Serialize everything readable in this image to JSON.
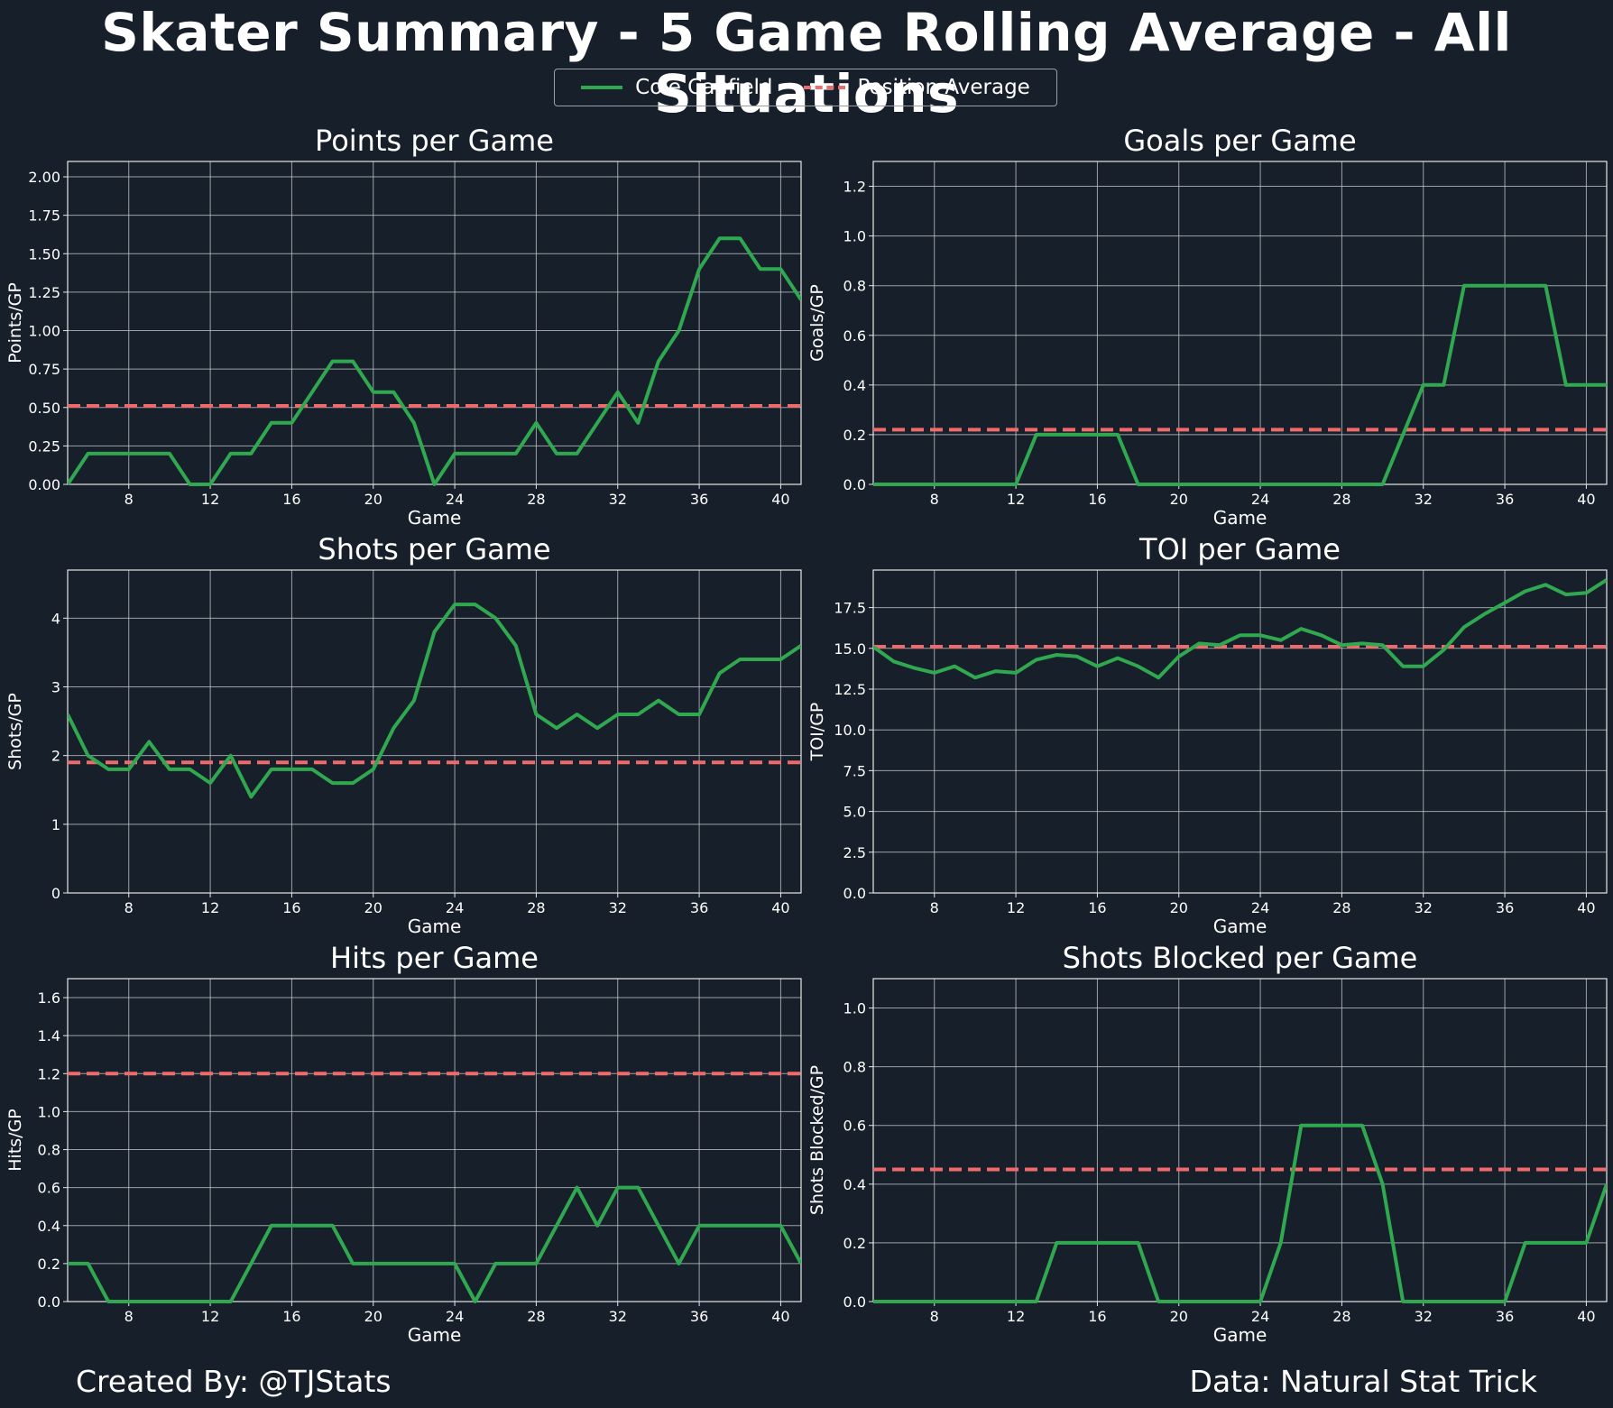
{
  "title": "Skater Summary - 5 Game Rolling Average - All Situations",
  "legend": {
    "player": "Cole Caufield",
    "average": "Position Average"
  },
  "colors": {
    "background": "#17202a",
    "player_line": "#2fa850",
    "average_line": "#ef6b6b",
    "grid": "#c8ccd0",
    "text": "#ffffff"
  },
  "footer": {
    "left": "Created By: @TJStats",
    "right": "Data: Natural Stat Trick"
  },
  "chart_data": [
    {
      "type": "line",
      "title": "Points per Game",
      "xlabel": "Game",
      "ylabel": "Points/GP",
      "xlim": [
        5,
        41
      ],
      "ylim": [
        0,
        2.1
      ],
      "xticks": [
        8,
        12,
        16,
        20,
        24,
        28,
        32,
        36,
        40
      ],
      "yticks": [
        "0.00",
        "0.25",
        "0.50",
        "0.75",
        "1.00",
        "1.25",
        "1.50",
        "1.75",
        "2.00"
      ],
      "x": [
        5,
        6,
        7,
        8,
        9,
        10,
        11,
        12,
        13,
        14,
        15,
        16,
        17,
        18,
        19,
        20,
        21,
        22,
        23,
        24,
        25,
        26,
        27,
        28,
        29,
        30,
        31,
        32,
        33,
        34,
        35,
        36,
        37,
        38,
        39,
        40,
        41
      ],
      "series": [
        {
          "name": "Cole Caufield",
          "values": [
            0,
            0.2,
            0.2,
            0.2,
            0.2,
            0.2,
            0,
            0,
            0.2,
            0.2,
            0.4,
            0.4,
            0.6,
            0.8,
            0.8,
            0.6,
            0.6,
            0.4,
            0,
            0.2,
            0.2,
            0.2,
            0.2,
            0.4,
            0.2,
            0.2,
            0.4,
            0.6,
            0.4,
            0.8,
            1.0,
            1.4,
            1.6,
            1.6,
            1.4,
            1.4,
            1.2
          ]
        }
      ],
      "average": 0.51
    },
    {
      "type": "line",
      "title": "Goals per Game",
      "xlabel": "Game",
      "ylabel": "Goals/GP",
      "xlim": [
        5,
        41
      ],
      "ylim": [
        0,
        1.3
      ],
      "xticks": [
        8,
        12,
        16,
        20,
        24,
        28,
        32,
        36,
        40
      ],
      "yticks": [
        "0.0",
        "0.2",
        "0.4",
        "0.6",
        "0.8",
        "1.0",
        "1.2"
      ],
      "x": [
        5,
        6,
        7,
        8,
        9,
        10,
        11,
        12,
        13,
        14,
        15,
        16,
        17,
        18,
        19,
        20,
        21,
        22,
        23,
        24,
        25,
        26,
        27,
        28,
        29,
        30,
        31,
        32,
        33,
        34,
        35,
        36,
        37,
        38,
        39,
        40,
        41
      ],
      "series": [
        {
          "name": "Cole Caufield",
          "values": [
            0,
            0,
            0,
            0,
            0,
            0,
            0,
            0,
            0.2,
            0.2,
            0.2,
            0.2,
            0.2,
            0,
            0,
            0,
            0,
            0,
            0,
            0,
            0,
            0,
            0,
            0,
            0,
            0,
            0.2,
            0.4,
            0.4,
            0.8,
            0.8,
            0.8,
            0.8,
            0.8,
            0.4,
            0.4,
            0.4
          ]
        }
      ],
      "average": 0.22
    },
    {
      "type": "line",
      "title": "Shots per Game",
      "xlabel": "Game",
      "ylabel": "Shots/GP",
      "xlim": [
        5,
        41
      ],
      "ylim": [
        0,
        4.7
      ],
      "xticks": [
        8,
        12,
        16,
        20,
        24,
        28,
        32,
        36,
        40
      ],
      "yticks": [
        "0",
        "1",
        "2",
        "3",
        "4"
      ],
      "x": [
        5,
        6,
        7,
        8,
        9,
        10,
        11,
        12,
        13,
        14,
        15,
        16,
        17,
        18,
        19,
        20,
        21,
        22,
        23,
        24,
        25,
        26,
        27,
        28,
        29,
        30,
        31,
        32,
        33,
        34,
        35,
        36,
        37,
        38,
        39,
        40,
        41
      ],
      "series": [
        {
          "name": "Cole Caufield",
          "values": [
            2.6,
            2.0,
            1.8,
            1.8,
            2.2,
            1.8,
            1.8,
            1.6,
            2.0,
            1.4,
            1.8,
            1.8,
            1.8,
            1.6,
            1.6,
            1.8,
            2.4,
            2.8,
            3.8,
            4.2,
            4.2,
            4.0,
            3.6,
            2.6,
            2.4,
            2.6,
            2.4,
            2.6,
            2.6,
            2.8,
            2.6,
            2.6,
            3.2,
            3.4,
            3.4,
            3.4,
            3.6
          ]
        }
      ],
      "average": 1.9
    },
    {
      "type": "line",
      "title": "TOI per Game",
      "xlabel": "Game",
      "ylabel": "TOI/GP",
      "xlim": [
        5,
        41
      ],
      "ylim": [
        0,
        19.8
      ],
      "xticks": [
        8,
        12,
        16,
        20,
        24,
        28,
        32,
        36,
        40
      ],
      "yticks": [
        "0.0",
        "2.5",
        "5.0",
        "7.5",
        "10.0",
        "12.5",
        "15.0",
        "17.5"
      ],
      "x": [
        5,
        6,
        7,
        8,
        9,
        10,
        11,
        12,
        13,
        14,
        15,
        16,
        17,
        18,
        19,
        20,
        21,
        22,
        23,
        24,
        25,
        26,
        27,
        28,
        29,
        30,
        31,
        32,
        33,
        34,
        35,
        36,
        37,
        38,
        39,
        40,
        41
      ],
      "series": [
        {
          "name": "Cole Caufield",
          "values": [
            15.1,
            14.2,
            13.8,
            13.5,
            13.9,
            13.2,
            13.6,
            13.5,
            14.3,
            14.6,
            14.5,
            13.9,
            14.4,
            13.9,
            13.2,
            14.5,
            15.3,
            15.2,
            15.8,
            15.8,
            15.5,
            16.2,
            15.8,
            15.2,
            15.3,
            15.2,
            13.9,
            13.9,
            14.9,
            16.3,
            17.1,
            17.8,
            18.5,
            18.9,
            18.3,
            18.4,
            19.2
          ]
        }
      ],
      "average": 15.1
    },
    {
      "type": "line",
      "title": "Hits per Game",
      "xlabel": "Game",
      "ylabel": "Hits/GP",
      "xlim": [
        5,
        41
      ],
      "ylim": [
        0,
        1.7
      ],
      "xticks": [
        8,
        12,
        16,
        20,
        24,
        28,
        32,
        36,
        40
      ],
      "yticks": [
        "0.0",
        "0.2",
        "0.4",
        "0.6",
        "0.8",
        "1.0",
        "1.2",
        "1.4",
        "1.6"
      ],
      "x": [
        5,
        6,
        7,
        8,
        9,
        10,
        11,
        12,
        13,
        14,
        15,
        16,
        17,
        18,
        19,
        20,
        21,
        22,
        23,
        24,
        25,
        26,
        27,
        28,
        29,
        30,
        31,
        32,
        33,
        34,
        35,
        36,
        37,
        38,
        39,
        40,
        41
      ],
      "series": [
        {
          "name": "Cole Caufield",
          "values": [
            0.2,
            0.2,
            0,
            0,
            0,
            0,
            0,
            0,
            0,
            0.2,
            0.4,
            0.4,
            0.4,
            0.4,
            0.2,
            0.2,
            0.2,
            0.2,
            0.2,
            0.2,
            0,
            0.2,
            0.2,
            0.2,
            0.4,
            0.6,
            0.4,
            0.6,
            0.6,
            0.4,
            0.2,
            0.4,
            0.4,
            0.4,
            0.4,
            0.4,
            0.2
          ]
        }
      ],
      "average": 1.2
    },
    {
      "type": "line",
      "title": "Shots Blocked per Game",
      "xlabel": "Game",
      "ylabel": "Shots Blocked/GP",
      "xlim": [
        5,
        41
      ],
      "ylim": [
        0,
        1.1
      ],
      "xticks": [
        8,
        12,
        16,
        20,
        24,
        28,
        32,
        36,
        40
      ],
      "yticks": [
        "0.0",
        "0.2",
        "0.4",
        "0.6",
        "0.8",
        "1.0"
      ],
      "x": [
        5,
        6,
        7,
        8,
        9,
        10,
        11,
        12,
        13,
        14,
        15,
        16,
        17,
        18,
        19,
        20,
        21,
        22,
        23,
        24,
        25,
        26,
        27,
        28,
        29,
        30,
        31,
        32,
        33,
        34,
        35,
        36,
        37,
        38,
        39,
        40,
        41
      ],
      "series": [
        {
          "name": "Cole Caufield",
          "values": [
            0,
            0,
            0,
            0,
            0,
            0,
            0,
            0,
            0,
            0.2,
            0.2,
            0.2,
            0.2,
            0.2,
            0,
            0,
            0,
            0,
            0,
            0,
            0.2,
            0.6,
            0.6,
            0.6,
            0.6,
            0.4,
            0,
            0,
            0,
            0,
            0,
            0,
            0.2,
            0.2,
            0.2,
            0.2,
            0.4
          ]
        }
      ],
      "average": 0.45
    }
  ]
}
